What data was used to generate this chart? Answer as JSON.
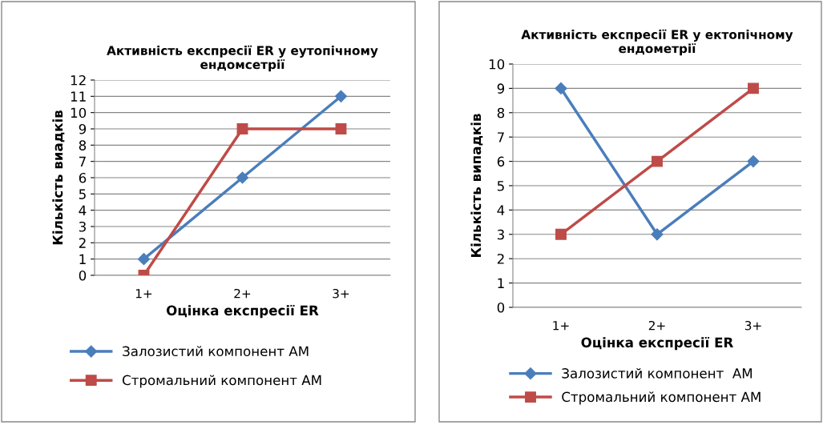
{
  "chart_data": [
    {
      "type": "line",
      "title": "Активність експресії ER у еутопічному\nендомсетрії",
      "xlabel": "Оцінка експресії ER",
      "ylabel": "Кількість виадків",
      "categories": [
        "1+",
        "2+",
        "3+"
      ],
      "ylim": [
        0,
        12
      ],
      "yticks": [
        0,
        1,
        2,
        3,
        4,
        5,
        6,
        7,
        8,
        9,
        10,
        11,
        12
      ],
      "grid": "y",
      "legend": "bottom",
      "series": [
        {
          "name": "Залозистий компонент АМ",
          "color": "#4a7ebb",
          "marker": "diamond",
          "values": [
            1,
            6,
            11
          ]
        },
        {
          "name": "Стромальний компонент АМ",
          "color": "#be4b48",
          "marker": "square",
          "values": [
            0,
            9,
            9
          ]
        }
      ]
    },
    {
      "type": "line",
      "title": "Активність експресії ER у ектопічному\nендометрії",
      "xlabel": "Оцінка експресії ER",
      "ylabel": "Кількість випадків",
      "categories": [
        "1+",
        "2+",
        "3+"
      ],
      "ylim": [
        0,
        10
      ],
      "yticks": [
        0,
        1,
        2,
        3,
        4,
        5,
        6,
        7,
        8,
        9,
        10
      ],
      "grid": "y",
      "legend": "bottom",
      "series": [
        {
          "name": "Залозистий компонент  АМ",
          "color": "#4a7ebb",
          "marker": "diamond",
          "values": [
            9,
            3,
            6
          ]
        },
        {
          "name": "Стромальний компонент АМ",
          "color": "#be4b48",
          "marker": "square",
          "values": [
            3,
            6,
            9
          ]
        }
      ]
    }
  ]
}
